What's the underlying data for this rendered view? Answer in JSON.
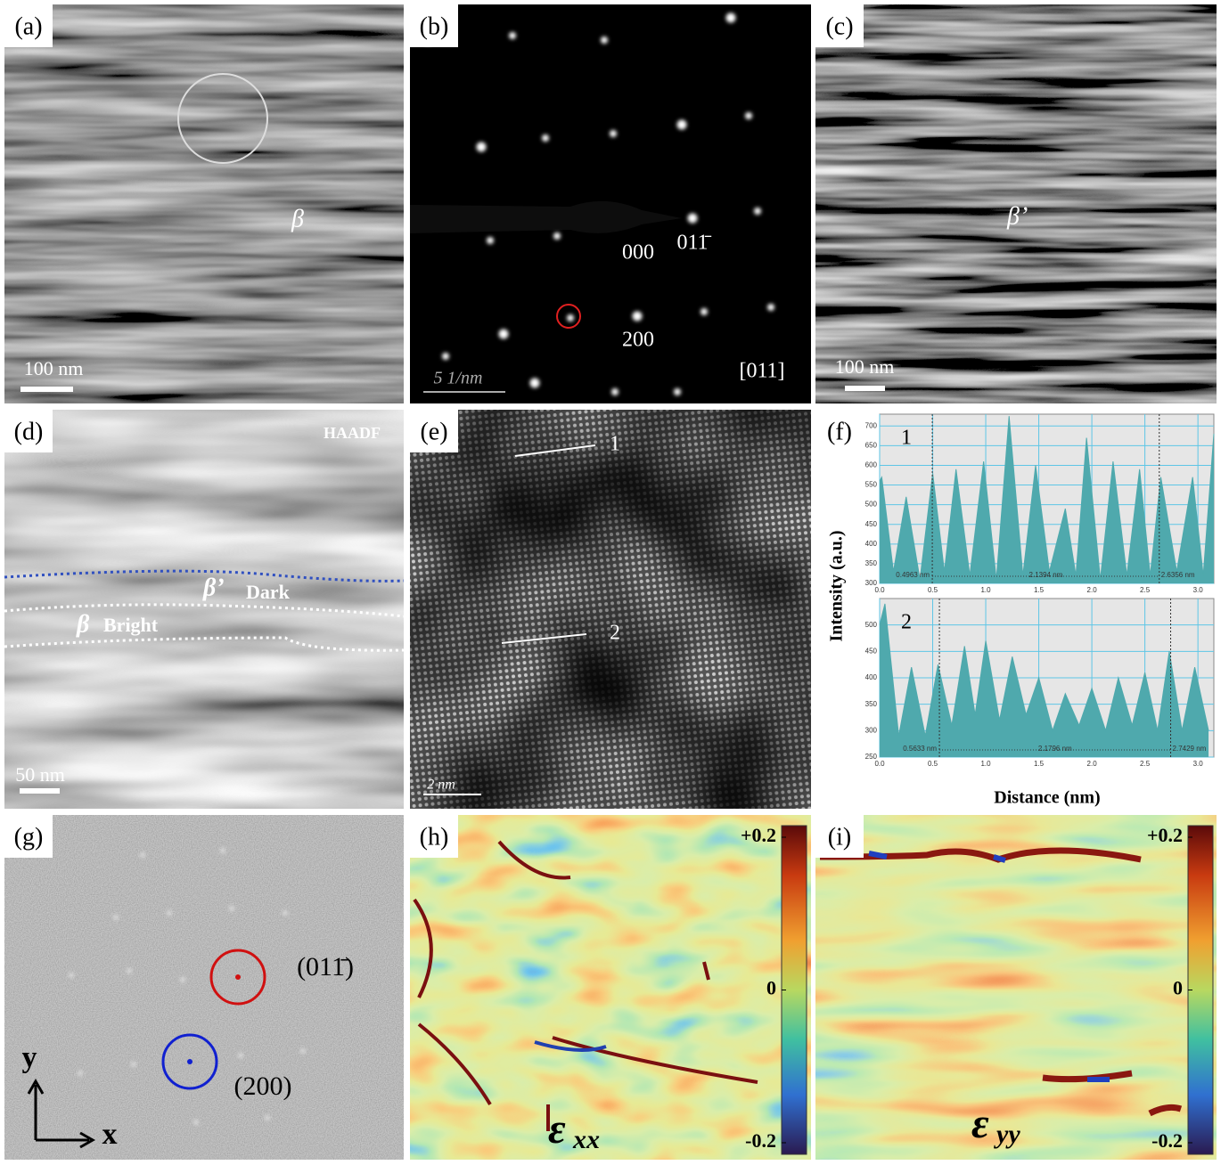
{
  "panels": {
    "a": {
      "label": "(a)",
      "phase": "β",
      "scale_bar": "100 nm"
    },
    "b": {
      "label": "(b)",
      "spots": [
        "000",
        "011̄",
        "200"
      ],
      "zone_axis": "[011]",
      "scale_bar": "5 1/nm"
    },
    "c": {
      "label": "(c)",
      "phase": "β’",
      "scale_bar": "100 nm"
    },
    "d": {
      "label": "(d)",
      "mode": "HAADF",
      "dark_phase": "β’",
      "dark_text": "Dark",
      "bright_phase": "β",
      "bright_text": "Bright",
      "scale_bar": "50 nm"
    },
    "e": {
      "label": "(e)",
      "lines": [
        "1",
        "2"
      ],
      "scale_bar": "2 nm"
    },
    "f": {
      "label": "(f)",
      "ylabel": "Intensity (a.u.)",
      "xlabel": "Distance (nm)",
      "charts": [
        {
          "type": "area",
          "title": "1",
          "color": "#4fa9ad",
          "grid": true,
          "grid_color": "#5ec6e6",
          "x": [
            0,
            0.02,
            0.13,
            0.25,
            0.38,
            0.5,
            0.61,
            0.72,
            0.85,
            0.98,
            1.1,
            1.22,
            1.35,
            1.47,
            1.6,
            1.75,
            1.85,
            1.95,
            2.08,
            2.2,
            2.33,
            2.45,
            2.55,
            2.65,
            2.8,
            2.95,
            3.05,
            3.15
          ],
          "values": [
            560,
            570,
            330,
            520,
            310,
            580,
            330,
            590,
            320,
            610,
            310,
            725,
            320,
            600,
            330,
            490,
            320,
            670,
            310,
            610,
            320,
            590,
            320,
            570,
            330,
            570,
            320,
            680
          ],
          "xlim": [
            0,
            3.15
          ],
          "ylim": [
            300,
            730
          ],
          "xticks": [
            {
              "value": 0,
              "label": "0.0"
            },
            0.5,
            {
              "value": 1,
              "label": "1.0"
            },
            1.5,
            {
              "value": 2,
              "label": "2.0"
            },
            2.5,
            {
              "value": 3,
              "label": "3.0"
            }
          ],
          "yticks": [
            300,
            350,
            400,
            450,
            500,
            550,
            600,
            650,
            700
          ],
          "markers": [
            {
              "value": 0.4963,
              "label": "0.4963 nm"
            },
            {
              "value": 2.1394,
              "label": "2.1394 nm"
            },
            {
              "value": 2.6356,
              "label": "2.6356 nm"
            }
          ]
        },
        {
          "type": "area",
          "title": "2",
          "color": "#4fa9ad",
          "grid": true,
          "grid_color": "#5ec6e6",
          "x": [
            0,
            0.05,
            0.18,
            0.3,
            0.43,
            0.55,
            0.68,
            0.8,
            0.9,
            1.0,
            1.13,
            1.25,
            1.38,
            1.5,
            1.63,
            1.75,
            1.88,
            2.0,
            2.13,
            2.25,
            2.38,
            2.5,
            2.62,
            2.73,
            2.85,
            2.97,
            3.1
          ],
          "values": [
            500,
            540,
            290,
            420,
            290,
            425,
            310,
            460,
            330,
            470,
            320,
            440,
            330,
            400,
            300,
            370,
            310,
            380,
            300,
            400,
            310,
            410,
            300,
            450,
            300,
            420,
            300
          ],
          "xlim": [
            0,
            3.15
          ],
          "ylim": [
            250,
            550
          ],
          "xticks": [
            {
              "value": 0,
              "label": "0.0"
            },
            0.5,
            {
              "value": 1,
              "label": "1.0"
            },
            1.5,
            {
              "value": 2,
              "label": "2.0"
            },
            2.5,
            {
              "value": 3,
              "label": "3.0"
            }
          ],
          "yticks": [
            250,
            300,
            350,
            400,
            450,
            500
          ],
          "markers": [
            {
              "value": 0.5633,
              "label": "0.5633 nm"
            },
            {
              "value": 2.1796,
              "label": "2.1796 nm"
            },
            {
              "value": 2.7429,
              "label": "2.7429 nm"
            }
          ]
        }
      ]
    },
    "g": {
      "label": "(g)",
      "spots": [
        "(011̄)",
        "(200)"
      ],
      "axes": [
        "y",
        "x"
      ]
    },
    "h": {
      "label": "(h)",
      "symbol": "ε",
      "subscript": "xx",
      "colorbar": {
        "lim": [
          -0.2,
          0.2
        ],
        "ticks": [
          {
            "value": 0.2,
            "label": "+0.2"
          },
          0,
          {
            "value": -0.2,
            "label": "-0.2"
          }
        ]
      }
    },
    "i": {
      "label": "(i)",
      "symbol": "ε",
      "subscript": "yy",
      "colorbar": {
        "lim": [
          -0.2,
          0.2
        ],
        "ticks": [
          {
            "value": 0.2,
            "label": "+0.2"
          },
          0,
          {
            "value": -0.2,
            "label": "-0.2"
          }
        ]
      }
    }
  }
}
